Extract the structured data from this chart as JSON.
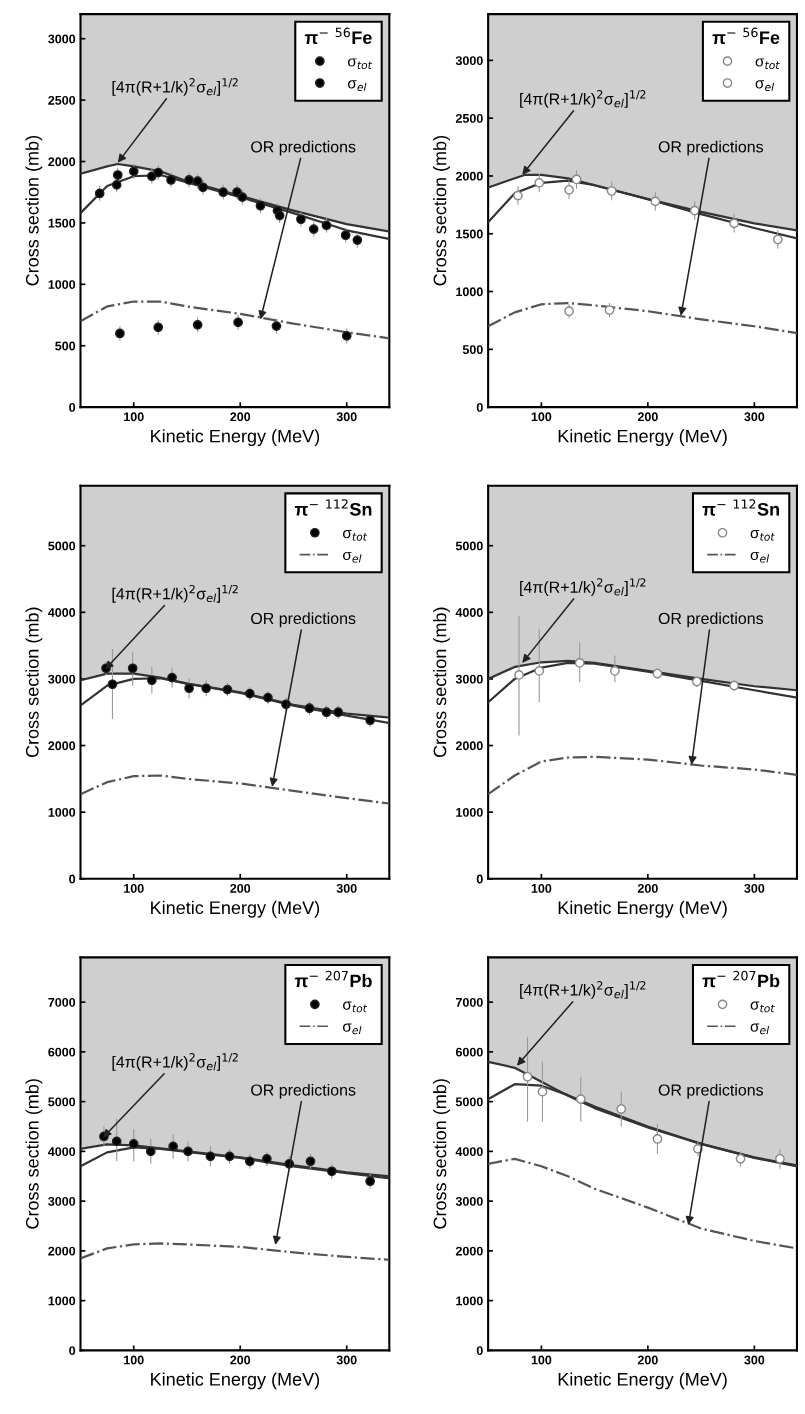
{
  "chart_data": [
    {
      "type": "line",
      "xlabel": "Kinetic Energy (MeV)",
      "ylabel": "Cross section (mb)",
      "legend_title": "π$^{−}$ $^{56}$Fe",
      "legend": "top right",
      "grid": false,
      "xlim": [
        50,
        340
      ],
      "xticks": [
        100,
        200,
        300
      ],
      "ylim": [
        0,
        3200
      ],
      "yticks": [
        0,
        500,
        1000,
        1500,
        2000,
        2500,
        3000
      ],
      "series": [
        {
          "type": "scatter",
          "name": "σ$_{tot}$",
          "color": "#000000",
          "marker": "circle",
          "x": [
            68,
            84,
            85,
            100,
            117,
            123,
            135,
            152,
            160,
            165,
            184,
            197,
            202,
            219,
            235,
            237,
            257,
            269,
            281,
            299,
            310
          ],
          "values": [
            1740,
            1810,
            1890,
            1920,
            1880,
            1910,
            1850,
            1850,
            1840,
            1790,
            1750,
            1750,
            1710,
            1640,
            1600,
            1560,
            1530,
            1450,
            1480,
            1400,
            1360
          ],
          "errors": [
            60,
            60,
            60,
            60,
            60,
            60,
            60,
            60,
            60,
            60,
            60,
            60,
            60,
            60,
            60,
            60,
            60,
            60,
            60,
            60,
            60
          ]
        },
        {
          "type": "scatter",
          "name": "σ$_{el}$",
          "color": "#000000",
          "marker": "circle",
          "x": [
            87,
            123,
            160,
            198,
            234,
            300
          ],
          "values": [
            600,
            650,
            670,
            690,
            660,
            580
          ],
          "errors": [
            60,
            60,
            60,
            60,
            60,
            60
          ]
        },
        {
          "type": "line",
          "color": "#333333",
          "line_style": "solid",
          "x": [
            50,
            75,
            85,
            100,
            125,
            150,
            200,
            250,
            300,
            340
          ],
          "values": [
            1900,
            1960,
            1980,
            1960,
            1920,
            1840,
            1720,
            1600,
            1490,
            1430
          ],
          "lower": [
            1900,
            1960,
            1980,
            1960,
            1920,
            1840,
            1720,
            1600,
            1490,
            1430
          ],
          "upper": [
            3200,
            3200,
            3200,
            3200,
            3200,
            3200,
            3200,
            3200,
            3200,
            3200
          ]
        },
        {
          "type": "line",
          "color": "#333333",
          "line_style": "solid",
          "x": [
            50,
            75,
            100,
            125,
            150,
            200,
            250,
            300,
            340
          ],
          "values": [
            1580,
            1800,
            1880,
            1890,
            1830,
            1710,
            1580,
            1440,
            1370
          ]
        },
        {
          "type": "line",
          "color": "#555555",
          "line_style": "dashdot",
          "x": [
            50,
            75,
            100,
            125,
            150,
            200,
            250,
            300,
            340
          ],
          "values": [
            700,
            820,
            860,
            860,
            820,
            760,
            680,
            610,
            560
          ]
        }
      ],
      "annotations": [
        {
          "text": "[4π(R+1/k)$^{2}$σ$_{el}$]$^{1/2}$",
          "x": 85,
          "y": 1990
        },
        {
          "text": "OR predictions",
          "x": 219,
          "y": 714
        }
      ]
    },
    {
      "type": "line",
      "xlabel": "Kinetic Energy (MeV)",
      "ylabel": "Cross section (mb)",
      "legend_title": "π$^{−}$ $^{56}$Fe",
      "legend": "top right",
      "grid": false,
      "xlim": [
        50,
        340
      ],
      "xticks": [
        100,
        200,
        300
      ],
      "ylim": [
        0,
        3400
      ],
      "yticks": [
        0,
        500,
        1000,
        1500,
        2000,
        2500,
        3000
      ],
      "series": [
        {
          "type": "scatter",
          "name": "σ$_{tot}$",
          "color": "#ffffff",
          "marker": "circle",
          "x": [
            78,
            98,
            126,
            133,
            166,
            207,
            244,
            281,
            322
          ],
          "values": [
            1830,
            1940,
            1880,
            1970,
            1870,
            1780,
            1700,
            1590,
            1450
          ],
          "errors": [
            80,
            80,
            80,
            80,
            80,
            80,
            80,
            80,
            80
          ]
        },
        {
          "type": "scatter",
          "name": "σ$_{el}$",
          "color": "#ffffff",
          "marker": "circle",
          "x": [
            126,
            164
          ],
          "values": [
            830,
            840
          ],
          "errors": [
            60,
            60
          ]
        },
        {
          "type": "line",
          "color": "#333333",
          "line_style": "solid",
          "x": [
            50,
            75,
            85,
            100,
            125,
            150,
            200,
            250,
            300,
            340
          ],
          "values": [
            1900,
            1980,
            2010,
            2010,
            1980,
            1920,
            1800,
            1690,
            1590,
            1530
          ],
          "lower": [
            1900,
            1980,
            2010,
            2010,
            1980,
            1920,
            1800,
            1690,
            1590,
            1530
          ],
          "upper": [
            3400,
            3400,
            3400,
            3400,
            3400,
            3400,
            3400,
            3400,
            3400,
            3400
          ]
        },
        {
          "type": "line",
          "color": "#333333",
          "line_style": "solid",
          "x": [
            50,
            75,
            100,
            125,
            150,
            200,
            250,
            300,
            340
          ],
          "values": [
            1600,
            1850,
            1940,
            1960,
            1920,
            1800,
            1670,
            1550,
            1460
          ]
        },
        {
          "type": "line",
          "color": "#555555",
          "line_style": "dashdot",
          "x": [
            50,
            75,
            100,
            125,
            150,
            200,
            250,
            300,
            340
          ],
          "values": [
            700,
            820,
            890,
            900,
            880,
            830,
            760,
            700,
            640
          ]
        }
      ],
      "annotations": [
        {
          "text": "[4π(R+1/k)$^{2}$σ$_{el}$]$^{1/2}$",
          "x": 82,
          "y": 2010
        },
        {
          "text": "OR predictions",
          "x": 231,
          "y": 790
        }
      ]
    },
    {
      "type": "line",
      "xlabel": "Kinetic Energy (MeV)",
      "ylabel": "Cross section (mb)",
      "legend_title": "π$^{−}$ $^{112}$Sn",
      "legend": "top right",
      "grid": false,
      "xlim": [
        50,
        340
      ],
      "xticks": [
        100,
        200,
        300
      ],
      "ylim": [
        0,
        5900
      ],
      "yticks": [
        0,
        1000,
        2000,
        3000,
        4000,
        5000
      ],
      "series": [
        {
          "type": "scatter",
          "name": "σ$_{tot}$",
          "color": "#000000",
          "marker": "circle",
          "x": [
            74,
            80,
            99,
            117,
            136,
            152,
            168,
            188,
            209,
            226,
            243,
            265,
            281,
            292,
            322
          ],
          "values": [
            3160,
            2920,
            3160,
            2980,
            3020,
            2860,
            2860,
            2840,
            2780,
            2720,
            2620,
            2560,
            2500,
            2500,
            2380
          ],
          "errors": [
            100,
            [
              2400,
              3450
            ],
            [
              2900,
              3400
            ],
            200,
            150,
            150,
            120,
            100,
            100,
            100,
            100,
            100,
            100,
            100,
            100
          ]
        },
        {
          "type": "line",
          "color": "#333333",
          "line_style": "solid",
          "x": [
            50,
            75,
            100,
            125,
            150,
            200,
            250,
            300,
            340
          ],
          "values": [
            2980,
            3080,
            3080,
            3020,
            2930,
            2800,
            2610,
            2480,
            2420
          ],
          "lower": [
            2980,
            3080,
            3080,
            3020,
            2930,
            2800,
            2610,
            2480,
            2420
          ],
          "upper": [
            5900,
            5900,
            5900,
            5900,
            5900,
            5900,
            5900,
            5900,
            5900
          ]
        },
        {
          "type": "line",
          "color": "#333333",
          "line_style": "solid",
          "x": [
            50,
            75,
            100,
            125,
            150,
            200,
            250,
            300,
            340
          ],
          "values": [
            2600,
            2900,
            3000,
            3010,
            2930,
            2790,
            2600,
            2450,
            2340
          ]
        },
        {
          "type": "line",
          "name": "σ$_{el}$",
          "color": "#555555",
          "line_style": "dashdot",
          "x": [
            50,
            75,
            100,
            125,
            150,
            200,
            250,
            300,
            340
          ],
          "values": [
            1270,
            1450,
            1540,
            1550,
            1500,
            1430,
            1320,
            1210,
            1130
          ]
        }
      ],
      "annotations": [
        {
          "text": "[4π(R+1/k)$^{2}$σ$_{el}$]$^{1/2}$",
          "x": 73,
          "y": 3140
        },
        {
          "text": "OR predictions",
          "x": 230,
          "y": 1380
        }
      ]
    },
    {
      "type": "line",
      "xlabel": "Kinetic Energy (MeV)",
      "ylabel": "Cross section (mb)",
      "legend_title": "π$^{−}$ $^{112}$Sn",
      "legend": "top right",
      "grid": false,
      "xlim": [
        50,
        340
      ],
      "xticks": [
        100,
        200,
        300
      ],
      "ylim": [
        0,
        5900
      ],
      "yticks": [
        0,
        1000,
        2000,
        3000,
        4000,
        5000
      ],
      "series": [
        {
          "type": "scatter",
          "name": "σ$_{tot}$",
          "color": "#ffffff",
          "marker": "circle",
          "x": [
            79,
            98,
            136,
            169,
            209,
            246,
            281
          ],
          "values": [
            3060,
            3120,
            3240,
            3120,
            3080,
            2960,
            2900
          ],
          "errors": [
            [
              2150,
              3950
            ],
            [
              2650,
              3750
            ],
            [
              2950,
              3550
            ],
            [
              2950,
              3350
            ],
            80,
            80,
            80
          ]
        },
        {
          "type": "line",
          "color": "#333333",
          "line_style": "solid",
          "x": [
            50,
            75,
            100,
            125,
            150,
            200,
            250,
            300,
            340
          ],
          "values": [
            3000,
            3180,
            3250,
            3270,
            3240,
            3120,
            3000,
            2890,
            2830
          ],
          "lower": [
            3000,
            3180,
            3250,
            3270,
            3240,
            3120,
            3000,
            2890,
            2830
          ],
          "upper": [
            5900,
            5900,
            5900,
            5900,
            5900,
            5900,
            5900,
            5900,
            5900
          ]
        },
        {
          "type": "line",
          "color": "#333333",
          "line_style": "solid",
          "x": [
            50,
            75,
            100,
            125,
            150,
            200,
            250,
            300,
            340
          ],
          "values": [
            2650,
            3000,
            3170,
            3240,
            3230,
            3110,
            2970,
            2830,
            2720
          ]
        },
        {
          "type": "line",
          "name": "σ$_{el}$",
          "color": "#555555",
          "line_style": "dashdot",
          "x": [
            50,
            75,
            100,
            125,
            150,
            200,
            250,
            300,
            340
          ],
          "values": [
            1270,
            1550,
            1760,
            1820,
            1830,
            1790,
            1700,
            1640,
            1560
          ]
        }
      ],
      "annotations": [
        {
          "text": "[4π(R+1/k)$^{2}$σ$_{el}$]$^{1/2}$",
          "x": 82,
          "y": 3240
        },
        {
          "text": "OR predictions",
          "x": 241,
          "y": 1710
        }
      ]
    },
    {
      "type": "line",
      "xlabel": "Kinetic Energy (MeV)",
      "ylabel": "Cross section (mb)",
      "legend_title": "π$^{−}$ $^{207}$Pb",
      "legend": "top right",
      "grid": false,
      "xlim": [
        50,
        340
      ],
      "xticks": [
        100,
        200,
        300
      ],
      "ylim": [
        0,
        7900
      ],
      "yticks": [
        0,
        1000,
        2000,
        3000,
        4000,
        5000,
        6000,
        7000
      ],
      "series": [
        {
          "type": "scatter",
          "name": "σ$_{tot}$",
          "color": "#000000",
          "marker": "circle",
          "x": [
            72,
            84,
            100,
            116,
            137,
            151,
            172,
            190,
            209,
            225,
            246,
            266,
            286,
            322
          ],
          "values": [
            4300,
            4200,
            4150,
            4000,
            4100,
            4000,
            3900,
            3900,
            3800,
            3850,
            3750,
            3800,
            3600,
            3400
          ],
          "errors": [
            200,
            [
              3800,
              4650
            ],
            [
              3800,
              4450
            ],
            250,
            250,
            200,
            200,
            150,
            150,
            150,
            150,
            150,
            150,
            150
          ]
        },
        {
          "type": "line",
          "color": "#333333",
          "line_style": "solid",
          "x": [
            50,
            75,
            100,
            125,
            150,
            200,
            250,
            300,
            340
          ],
          "values": [
            4050,
            4140,
            4120,
            4060,
            4000,
            3880,
            3720,
            3580,
            3500
          ],
          "lower": [
            4050,
            4140,
            4120,
            4060,
            4000,
            3880,
            3720,
            3580,
            3500
          ],
          "upper": [
            7900,
            7900,
            7900,
            7900,
            7900,
            7900,
            7900,
            7900,
            7900
          ]
        },
        {
          "type": "line",
          "color": "#333333",
          "line_style": "solid",
          "x": [
            50,
            75,
            100,
            125,
            150,
            200,
            250,
            300,
            340
          ],
          "values": [
            3700,
            3980,
            4080,
            4050,
            3990,
            3870,
            3700,
            3560,
            3460
          ]
        },
        {
          "type": "line",
          "name": "σ$_{el}$",
          "color": "#555555",
          "line_style": "dashdot",
          "x": [
            50,
            75,
            100,
            125,
            150,
            200,
            250,
            300,
            340
          ],
          "values": [
            1850,
            2050,
            2130,
            2150,
            2130,
            2080,
            1970,
            1880,
            1820
          ]
        }
      ],
      "annotations": [
        {
          "text": "[4π(R+1/k)$^{2}$σ$_{el}$]$^{1/2}$",
          "x": 71,
          "y": 4273
        },
        {
          "text": "OR predictions",
          "x": 233,
          "y": 2120
        }
      ]
    },
    {
      "type": "line",
      "xlabel": "Kinetic Energy (MeV)",
      "ylabel": "Cross section (mb)",
      "legend_title": "π$^{−}$ $^{207}$Pb",
      "legend": "top right",
      "grid": false,
      "xlim": [
        50,
        340
      ],
      "xticks": [
        100,
        200,
        300
      ],
      "ylim": [
        0,
        7900
      ],
      "yticks": [
        0,
        1000,
        2000,
        3000,
        4000,
        5000,
        6000,
        7000
      ],
      "series": [
        {
          "type": "scatter",
          "name": "σ$_{tot}$",
          "color": "#ffffff",
          "marker": "circle",
          "x": [
            87,
            101,
            137,
            175,
            209,
            247,
            287,
            324
          ],
          "values": [
            5500,
            5200,
            5050,
            4850,
            4250,
            4050,
            3850,
            3850
          ],
          "errors": [
            [
              4600,
              6300
            ],
            [
              4600,
              5800
            ],
            [
              4600,
              5500
            ],
            [
              4500,
              5200
            ],
            [
              3950,
              4550
            ],
            150,
            150,
            200
          ]
        },
        {
          "type": "line",
          "color": "#333333",
          "line_style": "solid",
          "x": [
            50,
            75,
            100,
            125,
            150,
            200,
            250,
            300,
            340
          ],
          "values": [
            5800,
            5680,
            5400,
            5120,
            4870,
            4480,
            4150,
            3880,
            3720
          ],
          "lower": [
            5800,
            5680,
            5400,
            5120,
            4870,
            4480,
            4150,
            3880,
            3720
          ],
          "upper": [
            7900,
            7900,
            7900,
            7900,
            7900,
            7900,
            7900,
            7900,
            7900
          ]
        },
        {
          "type": "line",
          "color": "#333333",
          "line_style": "solid",
          "x": [
            50,
            75,
            100,
            125,
            150,
            200,
            250,
            300,
            340
          ],
          "values": [
            5050,
            5350,
            5320,
            5130,
            4900,
            4500,
            4150,
            3870,
            3700
          ]
        },
        {
          "type": "line",
          "name": "σ$_{el}$",
          "color": "#555555",
          "line_style": "dashdot",
          "x": [
            50,
            75,
            100,
            125,
            150,
            200,
            250,
            300,
            340
          ],
          "values": [
            3750,
            3850,
            3700,
            3500,
            3250,
            2870,
            2450,
            2200,
            2050
          ]
        }
      ],
      "annotations": [
        {
          "text": "[4π(R+1/k)$^{2}$σ$_{el}$]$^{1/2}$",
          "x": 77,
          "y": 5720
        },
        {
          "text": "OR predictions",
          "x": 238,
          "y": 2520
        }
      ]
    }
  ]
}
